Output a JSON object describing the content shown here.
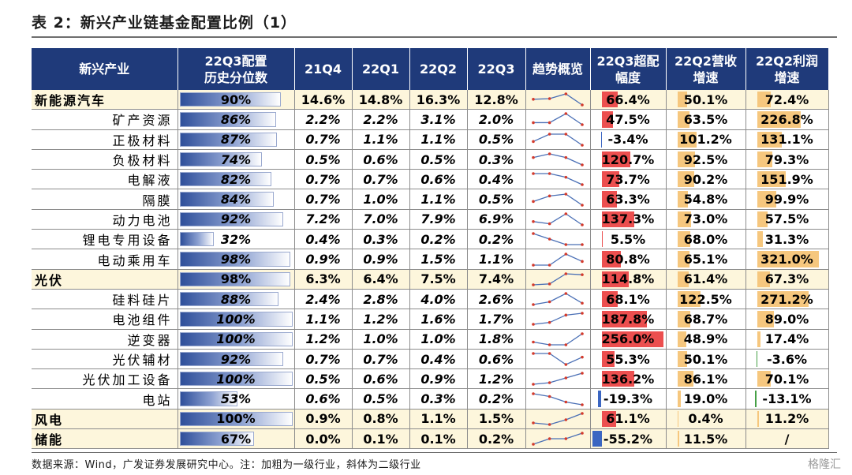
{
  "title": "表 2：新兴产业链基金配置比例（1）",
  "header": {
    "industry": "新兴产业",
    "pct_line1": "22Q3配置",
    "pct_line2": "历史分位数",
    "q1": "21Q4",
    "q2": "22Q1",
    "q3": "22Q2",
    "q4": "22Q3",
    "trend": "趋势概览",
    "excess_line1": "22Q3超配",
    "excess_line2": "幅度",
    "rev_line1": "22Q2营收",
    "rev_line2": "增速",
    "profit_line1": "22Q2利润",
    "profit_line2": "增速"
  },
  "rows": [
    {
      "name": "新能源汽车",
      "level": 1,
      "pct": "90%",
      "pct_v": 0.9,
      "q": [
        "14.6%",
        "14.8%",
        "16.3%",
        "12.8%"
      ],
      "qv": [
        14.6,
        14.8,
        16.3,
        12.8
      ],
      "excess": "66.4%",
      "excess_v": 66.4,
      "rev": "50.1%",
      "rev_v": 50.1,
      "profit": "72.4%",
      "profit_v": 72.4
    },
    {
      "name": "矿产资源",
      "level": 2,
      "pct": "86%",
      "pct_v": 0.86,
      "q": [
        "2.2%",
        "2.2%",
        "3.1%",
        "2.0%"
      ],
      "qv": [
        2.2,
        2.2,
        3.1,
        2.0
      ],
      "excess": "47.5%",
      "excess_v": 47.5,
      "rev": "63.5%",
      "rev_v": 63.5,
      "profit": "226.8%",
      "profit_v": 226.8
    },
    {
      "name": "正极材料",
      "level": 2,
      "pct": "87%",
      "pct_v": 0.87,
      "q": [
        "0.7%",
        "1.1%",
        "1.1%",
        "0.5%"
      ],
      "qv": [
        0.7,
        1.1,
        1.1,
        0.5
      ],
      "excess": "-3.4%",
      "excess_v": -3.4,
      "rev": "101.2%",
      "rev_v": 101.2,
      "profit": "131.1%",
      "profit_v": 131.1
    },
    {
      "name": "负极材料",
      "level": 2,
      "pct": "74%",
      "pct_v": 0.74,
      "q": [
        "0.5%",
        "0.6%",
        "0.5%",
        "0.3%"
      ],
      "qv": [
        0.5,
        0.6,
        0.5,
        0.3
      ],
      "excess": "120.7%",
      "excess_v": 120.7,
      "rev": "92.5%",
      "rev_v": 92.5,
      "profit": "79.3%",
      "profit_v": 79.3
    },
    {
      "name": "电解液",
      "level": 2,
      "pct": "82%",
      "pct_v": 0.82,
      "q": [
        "0.7%",
        "0.7%",
        "0.6%",
        "0.4%"
      ],
      "qv": [
        0.7,
        0.7,
        0.6,
        0.4
      ],
      "excess": "73.7%",
      "excess_v": 73.7,
      "rev": "90.2%",
      "rev_v": 90.2,
      "profit": "151.9%",
      "profit_v": 151.9
    },
    {
      "name": "隔膜",
      "level": 2,
      "pct": "84%",
      "pct_v": 0.84,
      "q": [
        "0.7%",
        "1.0%",
        "1.1%",
        "0.5%"
      ],
      "qv": [
        0.7,
        1.0,
        1.1,
        0.5
      ],
      "excess": "63.3%",
      "excess_v": 63.3,
      "rev": "54.8%",
      "rev_v": 54.8,
      "profit": "99.9%",
      "profit_v": 99.9
    },
    {
      "name": "动力电池",
      "level": 2,
      "pct": "92%",
      "pct_v": 0.92,
      "q": [
        "7.2%",
        "7.0%",
        "7.9%",
        "6.9%"
      ],
      "qv": [
        7.2,
        7.0,
        7.9,
        6.9
      ],
      "excess": "137.3%",
      "excess_v": 137.3,
      "rev": "73.0%",
      "rev_v": 73.0,
      "profit": "57.5%",
      "profit_v": 57.5
    },
    {
      "name": "锂电专用设备",
      "level": 2,
      "pct": "32%",
      "pct_v": 0.32,
      "q": [
        "0.4%",
        "0.3%",
        "0.2%",
        "0.2%"
      ],
      "qv": [
        0.4,
        0.3,
        0.2,
        0.2
      ],
      "excess": "5.5%",
      "excess_v": 5.5,
      "rev": "68.0%",
      "rev_v": 68.0,
      "profit": "31.3%",
      "profit_v": 31.3
    },
    {
      "name": "电动乘用车",
      "level": 2,
      "pct": "98%",
      "pct_v": 0.98,
      "q": [
        "0.9%",
        "0.9%",
        "1.5%",
        "1.1%"
      ],
      "qv": [
        0.9,
        0.9,
        1.5,
        1.1
      ],
      "excess": "80.8%",
      "excess_v": 80.8,
      "rev": "65.1%",
      "rev_v": 65.1,
      "profit": "321.0%",
      "profit_v": 321.0
    },
    {
      "name": "光伏",
      "level": 1,
      "pct": "98%",
      "pct_v": 0.98,
      "q": [
        "6.3%",
        "6.4%",
        "7.5%",
        "7.4%"
      ],
      "qv": [
        6.3,
        6.4,
        7.5,
        7.4
      ],
      "excess": "114.8%",
      "excess_v": 114.8,
      "rev": "61.4%",
      "rev_v": 61.4,
      "profit": "67.3%",
      "profit_v": 67.3
    },
    {
      "name": "硅料硅片",
      "level": 2,
      "pct": "88%",
      "pct_v": 0.88,
      "q": [
        "2.4%",
        "2.8%",
        "4.0%",
        "2.6%"
      ],
      "qv": [
        2.4,
        2.8,
        4.0,
        2.6
      ],
      "excess": "68.1%",
      "excess_v": 68.1,
      "rev": "122.5%",
      "rev_v": 122.5,
      "profit": "271.2%",
      "profit_v": 271.2
    },
    {
      "name": "电池组件",
      "level": 2,
      "pct": "100%",
      "pct_v": 1.0,
      "q": [
        "1.1%",
        "1.2%",
        "1.6%",
        "1.7%"
      ],
      "qv": [
        1.1,
        1.2,
        1.6,
        1.7
      ],
      "excess": "187.8%",
      "excess_v": 187.8,
      "rev": "68.7%",
      "rev_v": 68.7,
      "profit": "89.0%",
      "profit_v": 89.0
    },
    {
      "name": "逆变器",
      "level": 2,
      "pct": "100%",
      "pct_v": 1.0,
      "q": [
        "1.2%",
        "1.0%",
        "1.0%",
        "1.8%"
      ],
      "qv": [
        1.2,
        1.0,
        1.0,
        1.8
      ],
      "excess": "256.0%",
      "excess_v": 256.0,
      "rev": "48.9%",
      "rev_v": 48.9,
      "profit": "17.4%",
      "profit_v": 17.4
    },
    {
      "name": "光伏辅材",
      "level": 2,
      "pct": "92%",
      "pct_v": 0.92,
      "q": [
        "0.7%",
        "0.7%",
        "0.4%",
        "0.6%"
      ],
      "qv": [
        0.7,
        0.7,
        0.4,
        0.6
      ],
      "excess": "55.3%",
      "excess_v": 55.3,
      "rev": "50.1%",
      "rev_v": 50.1,
      "profit": "-3.6%",
      "profit_v": -3.6
    },
    {
      "name": "光伏加工设备",
      "level": 2,
      "pct": "100%",
      "pct_v": 1.0,
      "q": [
        "0.5%",
        "0.6%",
        "0.9%",
        "1.2%"
      ],
      "qv": [
        0.5,
        0.6,
        0.9,
        1.2
      ],
      "excess": "136.2%",
      "excess_v": 136.2,
      "rev": "86.1%",
      "rev_v": 86.1,
      "profit": "70.1%",
      "profit_v": 70.1
    },
    {
      "name": "电站",
      "level": 2,
      "pct": "53%",
      "pct_v": 0.53,
      "q": [
        "0.6%",
        "0.5%",
        "0.3%",
        "0.2%"
      ],
      "qv": [
        0.6,
        0.5,
        0.3,
        0.2
      ],
      "excess": "-19.3%",
      "excess_v": -19.3,
      "rev": "19.0%",
      "rev_v": 19.0,
      "profit": "-13.1%",
      "profit_v": -13.1
    },
    {
      "name": "风电",
      "level": 1,
      "pct": "100%",
      "pct_v": 1.0,
      "q": [
        "0.9%",
        "0.8%",
        "1.1%",
        "1.5%"
      ],
      "qv": [
        0.9,
        0.8,
        1.1,
        1.5
      ],
      "excess": "61.1%",
      "excess_v": 61.1,
      "rev": "0.4%",
      "rev_v": 0.4,
      "profit": "11.2%",
      "profit_v": 11.2
    },
    {
      "name": "储能",
      "level": 1,
      "pct": "67%",
      "pct_v": 0.67,
      "q": [
        "0.0%",
        "0.1%",
        "0.1%",
        "0.2%"
      ],
      "qv": [
        0.0,
        0.1,
        0.1,
        0.2
      ],
      "excess": "-55.2%",
      "excess_v": -55.2,
      "rev": "11.5%",
      "rev_v": 11.5,
      "profit": "/",
      "profit_v": null
    }
  ],
  "colors": {
    "header_bg": "#1f3a7a",
    "excess_pos": "#ec4f4f",
    "excess_neg": "#3b66c2",
    "growth_pos": "#f6c77e",
    "growth_neg": "#46a046",
    "spark_line": "#4a6fb5",
    "spark_dot": "#d33a2c"
  },
  "footnote": "数据来源：Wind，广发证券发展研究中心。注：加粗为一级行业，斜体为二级行业",
  "watermark": "格隆汇"
}
